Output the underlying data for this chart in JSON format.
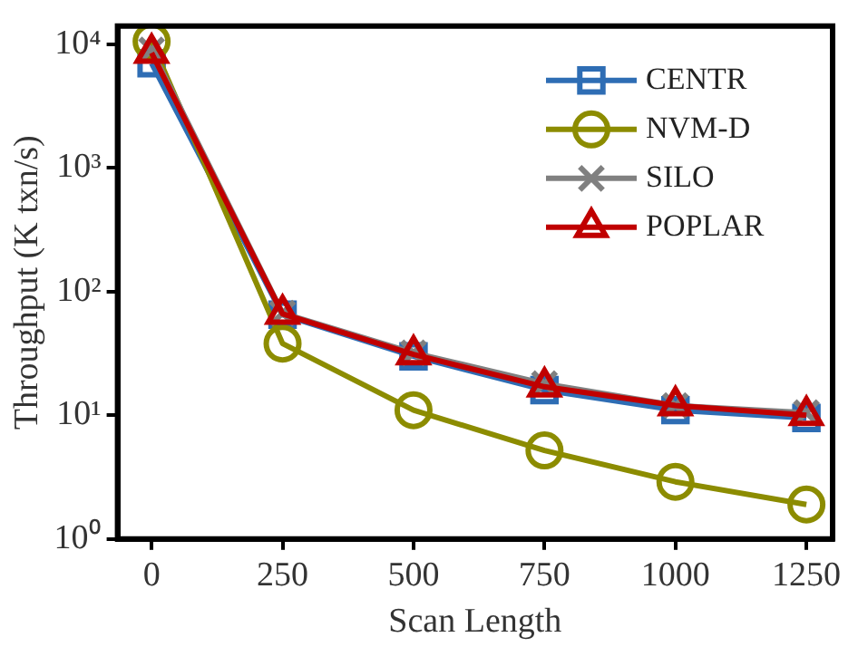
{
  "chart_data": {
    "type": "line",
    "xlabel": "Scan Length",
    "ylabel": "Throughput (K txn/s)",
    "x": [
      0,
      250,
      500,
      750,
      1000,
      1250
    ],
    "series": [
      {
        "name": "CENTR",
        "color": "#2e6db4",
        "marker": "square",
        "values": [
          7000,
          65,
          30,
          16,
          11,
          9.5
        ]
      },
      {
        "name": "NVM-D",
        "color": "#8c8c00",
        "marker": "circle",
        "values": [
          10500,
          38,
          11,
          5.2,
          2.9,
          1.9
        ]
      },
      {
        "name": "SILO",
        "color": "#808080",
        "marker": "cross",
        "values": [
          9000,
          67,
          32,
          18,
          12,
          10.5
        ]
      },
      {
        "name": "POPLAR",
        "color": "#c00000",
        "marker": "triangle",
        "values": [
          8500,
          66,
          31,
          17,
          12,
          10
        ]
      }
    ],
    "log": "y",
    "xlim": [
      -65,
      1300
    ],
    "ylim": [
      1,
      14000
    ],
    "xticks": [
      0,
      250,
      500,
      750,
      1000,
      1250
    ],
    "yticks": [
      {
        "value": 1,
        "label": "10⁰"
      },
      {
        "value": 10,
        "label": "10¹"
      },
      {
        "value": 100,
        "label": "10²"
      },
      {
        "value": 1000,
        "label": "10³"
      },
      {
        "value": 10000,
        "label": "10⁴"
      }
    ],
    "grid": false,
    "legend": "top right"
  }
}
